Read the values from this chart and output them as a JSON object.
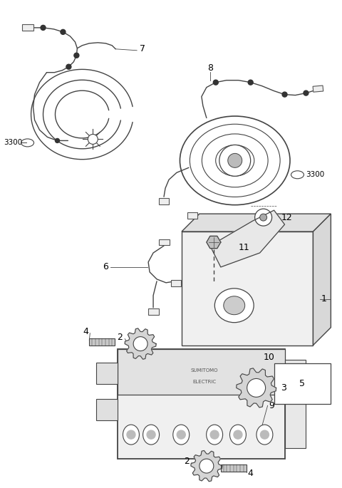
{
  "bg_color": "#ffffff",
  "line_color": "#444444",
  "label_color": "#000000",
  "fig_w": 4.8,
  "fig_h": 6.85,
  "dpi": 100
}
